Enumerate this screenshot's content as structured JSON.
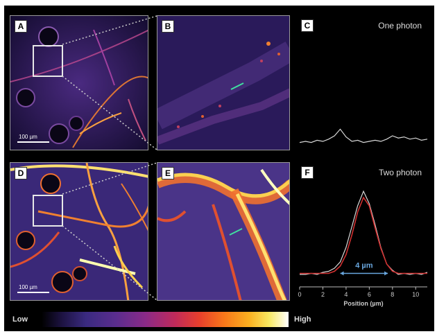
{
  "panels": {
    "a": {
      "label": "A",
      "scale_bar": "100 µm"
    },
    "b": {
      "label": "B"
    },
    "c": {
      "label": "C",
      "title": "One photon"
    },
    "d": {
      "label": "D",
      "scale_bar": "100 µm"
    },
    "e": {
      "label": "E"
    },
    "f": {
      "label": "F",
      "title": "Two photon",
      "fwhm_annotation": "4 µm"
    }
  },
  "colorbar": {
    "low_label": "Low",
    "high_label": "High"
  },
  "colors": {
    "background": "#000000",
    "trace": "#d8d8d8",
    "fit": "#d03030",
    "fwhm_arrow": "#6aa8e0",
    "line_roi": "#40e0a0"
  },
  "chart_data": [
    {
      "type": "line",
      "panel": "C",
      "title": "One photon",
      "xlabel": "",
      "xlim": [
        0,
        11
      ],
      "ylim": [
        0,
        1
      ],
      "series": [
        {
          "x": [
            0,
            0.5,
            1,
            1.5,
            2,
            2.5,
            3,
            3.5,
            4,
            4.5,
            5,
            5.5,
            6,
            6.5,
            7,
            7.5,
            8,
            8.5,
            9,
            9.5,
            10,
            10.5,
            11
          ],
          "y": [
            0.04,
            0.05,
            0.04,
            0.06,
            0.05,
            0.07,
            0.1,
            0.16,
            0.09,
            0.05,
            0.06,
            0.04,
            0.05,
            0.06,
            0.05,
            0.07,
            0.1,
            0.08,
            0.09,
            0.07,
            0.08,
            0.06,
            0.07
          ]
        }
      ]
    },
    {
      "type": "line",
      "panel": "F",
      "title": "Two photon",
      "xlabel": "Position (µm)",
      "xticks": [
        0,
        2,
        4,
        6,
        8,
        10
      ],
      "xlim": [
        0,
        11
      ],
      "ylim": [
        0,
        1
      ],
      "series": [
        {
          "x": [
            0,
            0.5,
            1,
            1.5,
            2,
            2.5,
            3,
            3.5,
            4,
            4.5,
            5,
            5.5,
            6,
            6.5,
            7,
            7.5,
            8,
            8.5,
            9,
            9.5,
            10,
            10.5,
            11
          ],
          "y": [
            0.12,
            0.12,
            0.13,
            0.12,
            0.14,
            0.15,
            0.18,
            0.24,
            0.38,
            0.58,
            0.78,
            0.92,
            0.8,
            0.6,
            0.38,
            0.22,
            0.16,
            0.12,
            0.13,
            0.12,
            0.13,
            0.12,
            0.14
          ]
        },
        {
          "x": [
            0,
            0.5,
            1,
            1.5,
            2,
            2.5,
            3,
            3.5,
            4,
            4.5,
            5,
            5.5,
            6,
            6.5,
            7,
            7.5,
            8,
            8.5,
            9,
            9.5,
            10,
            10.5,
            11
          ],
          "y": [
            0.13,
            0.13,
            0.13,
            0.13,
            0.13,
            0.13,
            0.15,
            0.2,
            0.31,
            0.5,
            0.72,
            0.86,
            0.78,
            0.57,
            0.37,
            0.22,
            0.15,
            0.13,
            0.13,
            0.13,
            0.13,
            0.13,
            0.13
          ]
        }
      ],
      "annotation": {
        "text": "4 µm",
        "x_from": 3.5,
        "x_to": 7.6,
        "y": 0.13
      }
    }
  ]
}
